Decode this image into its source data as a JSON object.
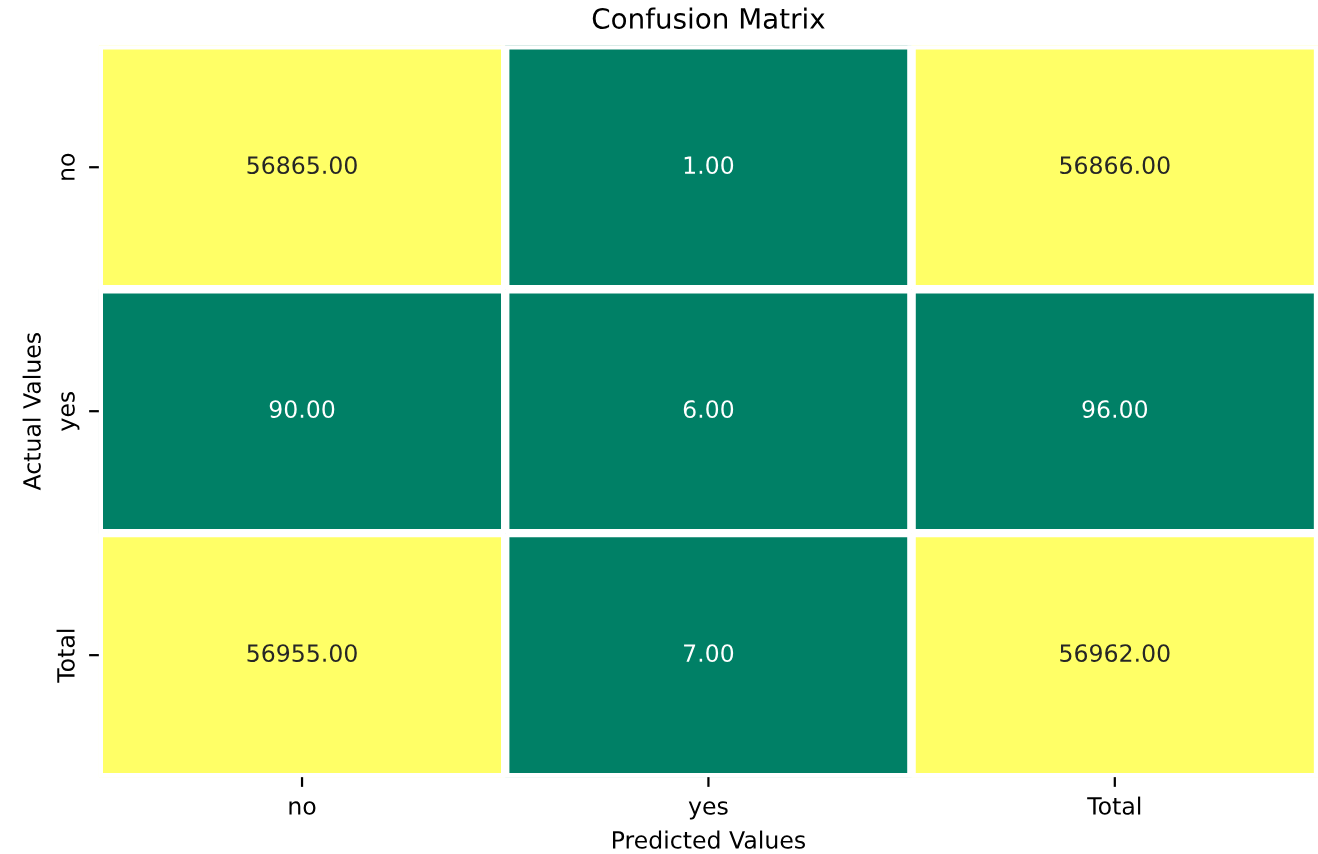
{
  "chart_data": {
    "type": "heatmap",
    "title": "Confusion Matrix",
    "xlabel": "Predicted Values",
    "ylabel": "Actual Values",
    "categories": [
      "no",
      "yes",
      "Total"
    ],
    "y_categories": [
      "no",
      "yes",
      "Total"
    ],
    "cells": [
      [
        56865,
        1,
        56866
      ],
      [
        90,
        6,
        96
      ],
      [
        56955,
        7,
        56962
      ]
    ],
    "cell_labels": [
      [
        "56865.00",
        "1.00",
        "56866.00"
      ],
      [
        "90.00",
        "6.00",
        "96.00"
      ],
      [
        "56955.00",
        "7.00",
        "56962.00"
      ]
    ],
    "grid": false,
    "legend": false
  }
}
